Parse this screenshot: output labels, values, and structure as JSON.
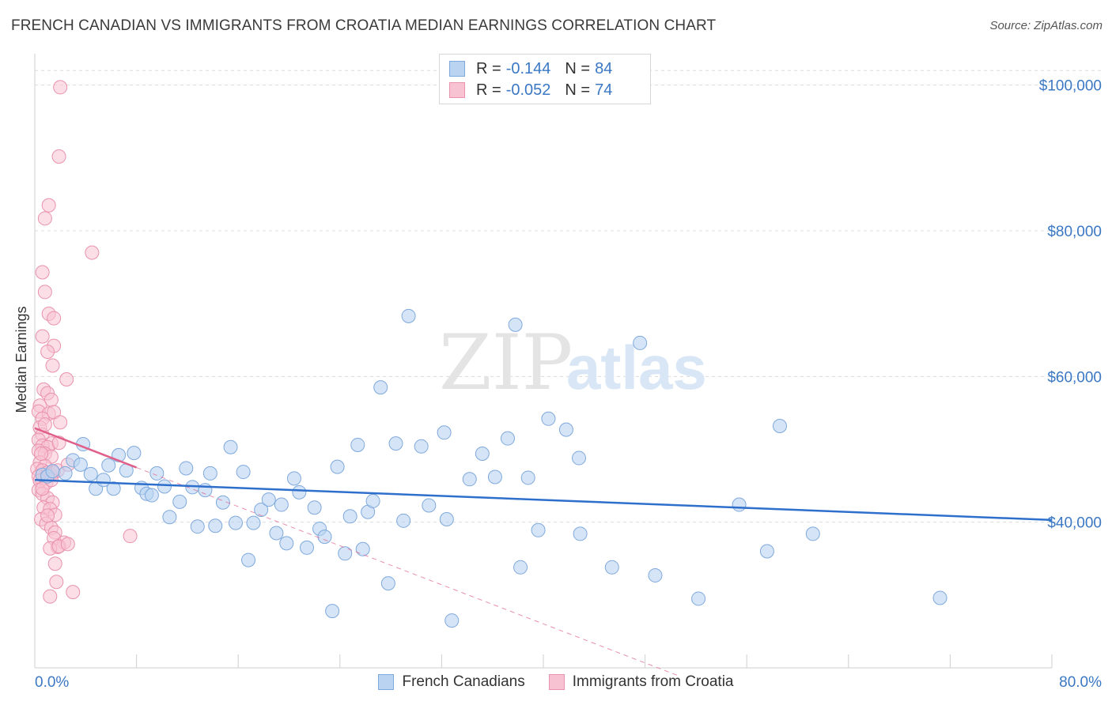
{
  "header": {
    "title": "FRENCH CANADIAN VS IMMIGRANTS FROM CROATIA MEDIAN EARNINGS CORRELATION CHART",
    "source": "Source: ZipAtlas.com"
  },
  "legend": {
    "series1": {
      "r_label": "R =",
      "r_value": "-0.144",
      "n_label": "N =",
      "n_value": "84"
    },
    "series2": {
      "r_label": "R =",
      "r_value": "-0.052",
      "n_label": "N =",
      "n_value": "74"
    }
  },
  "bottom_legend": {
    "series1": "French Canadians",
    "series2": "Immigrants from Croatia"
  },
  "watermark": {
    "zip": "ZIP",
    "atlas": "atlas"
  },
  "colors": {
    "blue_fill": "#b9d3f1",
    "blue_stroke": "#7fa9dc",
    "blue_line": "#2f6fcc",
    "pink_fill": "#f7c2d2",
    "pink_stroke": "#ea92ae",
    "pink_line": "#e0608a",
    "grid": "#dcdcdc",
    "tick_text": "#3b78c4"
  },
  "chart_data": {
    "type": "scatter",
    "title": "FRENCH CANADIAN VS IMMIGRANTS FROM CROATIA MEDIAN EARNINGS CORRELATION CHART",
    "xlabel": "",
    "ylabel": "Median Earnings",
    "xlim": [
      0,
      80
    ],
    "ylim": [
      20000,
      103000
    ],
    "x_tick_labels": [
      "0.0%",
      "80.0%"
    ],
    "y_ticks": [
      40000,
      60000,
      80000,
      100000
    ],
    "y_tick_labels": [
      "$40,000",
      "$60,000",
      "$80,000",
      "$100,000"
    ],
    "series": [
      {
        "name": "French Canadians",
        "r": -0.144,
        "n": 84,
        "trend": {
          "x": [
            0,
            80
          ],
          "y": [
            45800,
            40300
          ]
        },
        "points": [
          [
            0.6,
            46500
          ],
          [
            1.0,
            46300
          ],
          [
            1.4,
            47000
          ],
          [
            2.4,
            46700
          ],
          [
            3.0,
            48500
          ],
          [
            3.6,
            47900
          ],
          [
            3.8,
            50700
          ],
          [
            4.4,
            46600
          ],
          [
            4.8,
            44600
          ],
          [
            5.4,
            45800
          ],
          [
            5.8,
            47800
          ],
          [
            6.2,
            44600
          ],
          [
            6.6,
            49200
          ],
          [
            7.2,
            47100
          ],
          [
            7.8,
            49500
          ],
          [
            8.4,
            44700
          ],
          [
            8.8,
            43900
          ],
          [
            9.2,
            43700
          ],
          [
            9.6,
            46700
          ],
          [
            10.2,
            44900
          ],
          [
            10.6,
            40700
          ],
          [
            11.4,
            42800
          ],
          [
            11.9,
            47400
          ],
          [
            12.4,
            44800
          ],
          [
            12.8,
            39400
          ],
          [
            13.4,
            44400
          ],
          [
            13.8,
            46700
          ],
          [
            14.2,
            39500
          ],
          [
            14.8,
            42700
          ],
          [
            15.4,
            50300
          ],
          [
            15.8,
            39900
          ],
          [
            16.4,
            46900
          ],
          [
            16.8,
            34800
          ],
          [
            17.2,
            39900
          ],
          [
            17.8,
            41700
          ],
          [
            18.4,
            43100
          ],
          [
            19.0,
            38500
          ],
          [
            19.4,
            42400
          ],
          [
            19.8,
            37100
          ],
          [
            20.4,
            46000
          ],
          [
            20.8,
            44100
          ],
          [
            21.4,
            36500
          ],
          [
            22.0,
            42000
          ],
          [
            22.4,
            39100
          ],
          [
            22.8,
            38000
          ],
          [
            23.4,
            27800
          ],
          [
            23.8,
            47600
          ],
          [
            24.4,
            35700
          ],
          [
            24.8,
            40800
          ],
          [
            25.4,
            50600
          ],
          [
            25.8,
            36300
          ],
          [
            26.2,
            41400
          ],
          [
            26.6,
            42900
          ],
          [
            27.2,
            58500
          ],
          [
            27.8,
            31600
          ],
          [
            28.4,
            50800
          ],
          [
            29.0,
            40200
          ],
          [
            29.4,
            68300
          ],
          [
            30.4,
            50400
          ],
          [
            31.0,
            42300
          ],
          [
            32.2,
            52300
          ],
          [
            32.4,
            40400
          ],
          [
            32.8,
            26500
          ],
          [
            34.2,
            45900
          ],
          [
            35.2,
            49400
          ],
          [
            36.2,
            46200
          ],
          [
            37.2,
            51500
          ],
          [
            37.8,
            67100
          ],
          [
            38.2,
            33800
          ],
          [
            38.8,
            46100
          ],
          [
            39.6,
            38900
          ],
          [
            40.4,
            54200
          ],
          [
            41.8,
            52700
          ],
          [
            42.8,
            48800
          ],
          [
            42.9,
            38400
          ],
          [
            45.4,
            33800
          ],
          [
            47.6,
            64600
          ],
          [
            48.8,
            32700
          ],
          [
            52.2,
            29500
          ],
          [
            55.4,
            42400
          ],
          [
            57.6,
            36000
          ],
          [
            58.6,
            53200
          ],
          [
            61.2,
            38400
          ],
          [
            71.2,
            29600
          ]
        ]
      },
      {
        "name": "Immigrants from Croatia",
        "r": -0.052,
        "n": 74,
        "trend": {
          "x": [
            0,
            8
          ],
          "y": [
            52900,
            47500
          ]
        },
        "trend_extended": {
          "x": [
            8,
            50.5
          ],
          "y": [
            47500,
            19000
          ]
        },
        "points": [
          [
            2.0,
            99700
          ],
          [
            1.9,
            90200
          ],
          [
            1.1,
            83500
          ],
          [
            0.8,
            81700
          ],
          [
            4.5,
            77000
          ],
          [
            0.6,
            74300
          ],
          [
            0.8,
            71600
          ],
          [
            1.1,
            68600
          ],
          [
            1.5,
            68000
          ],
          [
            0.6,
            65500
          ],
          [
            1.5,
            64200
          ],
          [
            1.0,
            63400
          ],
          [
            1.4,
            61500
          ],
          [
            2.5,
            59600
          ],
          [
            0.7,
            58200
          ],
          [
            1.0,
            57700
          ],
          [
            1.3,
            56800
          ],
          [
            0.4,
            56000
          ],
          [
            0.3,
            55200
          ],
          [
            1.1,
            54900
          ],
          [
            1.5,
            55100
          ],
          [
            0.6,
            54200
          ],
          [
            2.0,
            53700
          ],
          [
            0.4,
            53000
          ],
          [
            0.6,
            52000
          ],
          [
            0.3,
            51300
          ],
          [
            1.3,
            50800
          ],
          [
            0.6,
            50500
          ],
          [
            1.0,
            50300
          ],
          [
            0.3,
            49800
          ],
          [
            0.8,
            49400
          ],
          [
            1.3,
            49000
          ],
          [
            0.4,
            48200
          ],
          [
            0.8,
            47700
          ],
          [
            0.2,
            47300
          ],
          [
            0.6,
            47100
          ],
          [
            1.0,
            46800
          ],
          [
            1.4,
            46900
          ],
          [
            0.3,
            46300
          ],
          [
            0.8,
            46100
          ],
          [
            1.2,
            46500
          ],
          [
            1.5,
            46800
          ],
          [
            0.4,
            45700
          ],
          [
            0.9,
            45400
          ],
          [
            0.3,
            44400
          ],
          [
            0.6,
            43900
          ],
          [
            1.0,
            43300
          ],
          [
            1.4,
            42700
          ],
          [
            0.7,
            42000
          ],
          [
            1.2,
            41800
          ],
          [
            1.6,
            41000
          ],
          [
            0.5,
            40400
          ],
          [
            0.9,
            39800
          ],
          [
            1.3,
            39200
          ],
          [
            1.6,
            38600
          ],
          [
            1.5,
            37800
          ],
          [
            2.3,
            37200
          ],
          [
            1.8,
            36600
          ],
          [
            1.2,
            36400
          ],
          [
            7.5,
            38100
          ],
          [
            1.6,
            34300
          ],
          [
            1.7,
            31800
          ],
          [
            3.0,
            30400
          ],
          [
            1.2,
            29800
          ],
          [
            1.9,
            36700
          ],
          [
            2.6,
            37000
          ],
          [
            1.0,
            40900
          ],
          [
            0.6,
            44600
          ],
          [
            1.8,
            47100
          ],
          [
            1.3,
            45800
          ],
          [
            0.5,
            49400
          ],
          [
            1.9,
            50900
          ],
          [
            2.6,
            47900
          ],
          [
            0.8,
            53400
          ]
        ]
      }
    ]
  }
}
